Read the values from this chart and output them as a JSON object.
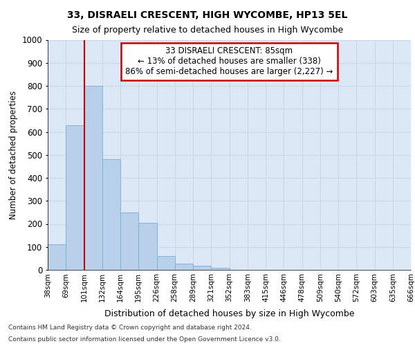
{
  "title": "33, DISRAELI CRESCENT, HIGH WYCOMBE, HP13 5EL",
  "subtitle": "Size of property relative to detached houses in High Wycombe",
  "xlabel": "Distribution of detached houses by size in High Wycombe",
  "ylabel": "Number of detached properties",
  "bin_labels": [
    "38sqm",
    "69sqm",
    "101sqm",
    "132sqm",
    "164sqm",
    "195sqm",
    "226sqm",
    "258sqm",
    "289sqm",
    "321sqm",
    "352sqm",
    "383sqm",
    "415sqm",
    "446sqm",
    "478sqm",
    "509sqm",
    "540sqm",
    "572sqm",
    "603sqm",
    "635sqm",
    "666sqm"
  ],
  "bar_heights": [
    110,
    630,
    800,
    480,
    250,
    205,
    60,
    28,
    18,
    10,
    0,
    0,
    0,
    0,
    0,
    0,
    0,
    0,
    0,
    0
  ],
  "bar_color": "#b8d0ea",
  "bar_edge_color": "#7aaed4",
  "red_line_x": 2.0,
  "red_line_color": "#cc0000",
  "annotation_text": "33 DISRAELI CRESCENT: 85sqm\n← 13% of detached houses are smaller (338)\n86% of semi-detached houses are larger (2,227) →",
  "annotation_box_color": "#ffffff",
  "annotation_border_color": "#cc0000",
  "ylim": [
    0,
    1000
  ],
  "yticks": [
    0,
    100,
    200,
    300,
    400,
    500,
    600,
    700,
    800,
    900,
    1000
  ],
  "grid_color": "#c8d8ec",
  "background_color": "#dce8f5",
  "footer_line1": "Contains HM Land Registry data © Crown copyright and database right 2024.",
  "footer_line2": "Contains public sector information licensed under the Open Government Licence v3.0."
}
